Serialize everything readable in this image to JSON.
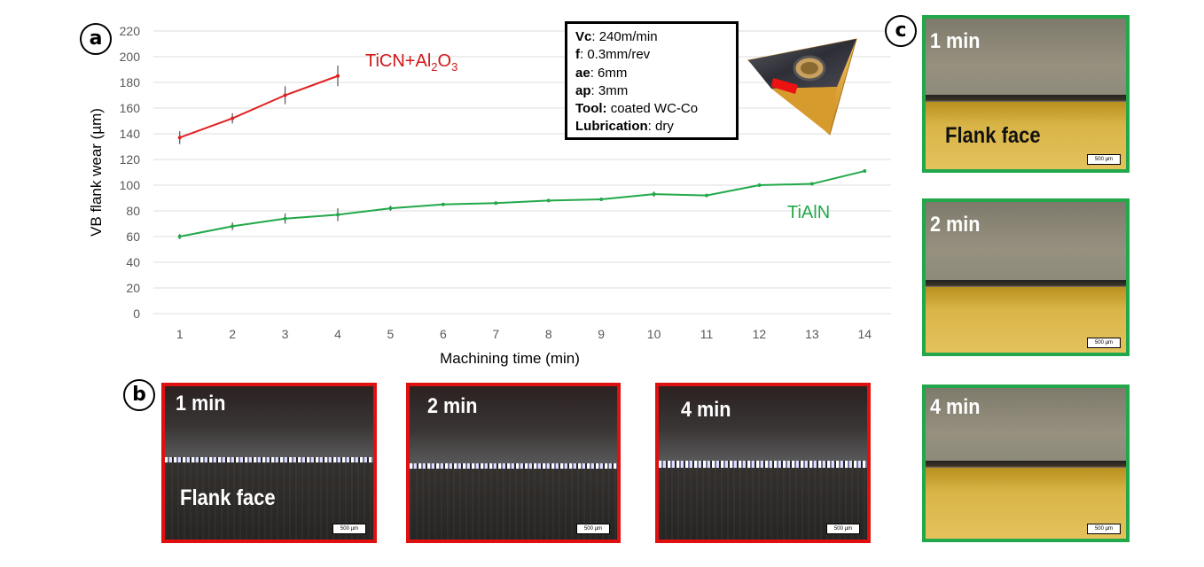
{
  "panels": {
    "a": "a",
    "b": "b",
    "c": "c"
  },
  "chart_data": {
    "type": "line",
    "xlabel": "Machining time (min)",
    "ylabel": "VB flank wear (µm)",
    "categories": [
      1,
      2,
      3,
      4,
      5,
      6,
      7,
      8,
      9,
      10,
      11,
      12,
      13,
      14
    ],
    "ylim": [
      0,
      220
    ],
    "yticks": [
      0,
      20,
      40,
      60,
      80,
      100,
      120,
      140,
      160,
      180,
      200,
      220
    ],
    "grid": "horizontal",
    "series": [
      {
        "name": "TiCN+Al2O3",
        "color": "#e02020",
        "x": [
          1,
          2,
          3,
          4
        ],
        "values": [
          137,
          152,
          170,
          185
        ],
        "errors": [
          5,
          4,
          7,
          8
        ]
      },
      {
        "name": "TiAlN",
        "color": "#22a84a",
        "x": [
          1,
          2,
          3,
          4,
          5,
          6,
          7,
          8,
          9,
          10,
          11,
          12,
          13,
          14
        ],
        "values": [
          60,
          68,
          74,
          77,
          82,
          85,
          86,
          88,
          89,
          93,
          92,
          100,
          101,
          111
        ],
        "errors": [
          2,
          3,
          4,
          5,
          2,
          1,
          1,
          1,
          1,
          2,
          1,
          1,
          1,
          1
        ]
      }
    ],
    "series_labels": {
      "ticn_main": "TiCN+Al",
      "ticn_sub1": "2",
      "ticn_mid": "O",
      "ticn_sub2": "3",
      "tialn": "TiAlN"
    }
  },
  "parameters": [
    {
      "key": "Vc",
      "value": ": 240m/min"
    },
    {
      "key": "f",
      "value": ": 0.3mm/rev"
    },
    {
      "key": "ae",
      "value": ": 6mm"
    },
    {
      "key": "ap",
      "value": ": 3mm"
    },
    {
      "key": "Tool:",
      "value": " coated WC-Co"
    },
    {
      "key": "Lubrication",
      "value": ": dry"
    }
  ],
  "micrographs_b": [
    {
      "time": "1 min",
      "flank": "Flank face",
      "scale": "500 µm"
    },
    {
      "time": "2 min",
      "scale": "500 µm"
    },
    {
      "time": "4 min",
      "scale": "500 µm"
    }
  ],
  "micrographs_c": [
    {
      "time": "1 min",
      "flank": "Flank face",
      "scale": "500 µm"
    },
    {
      "time": "2 min",
      "scale": "500 µm"
    },
    {
      "time": "4 min",
      "scale": "500 µm"
    }
  ]
}
